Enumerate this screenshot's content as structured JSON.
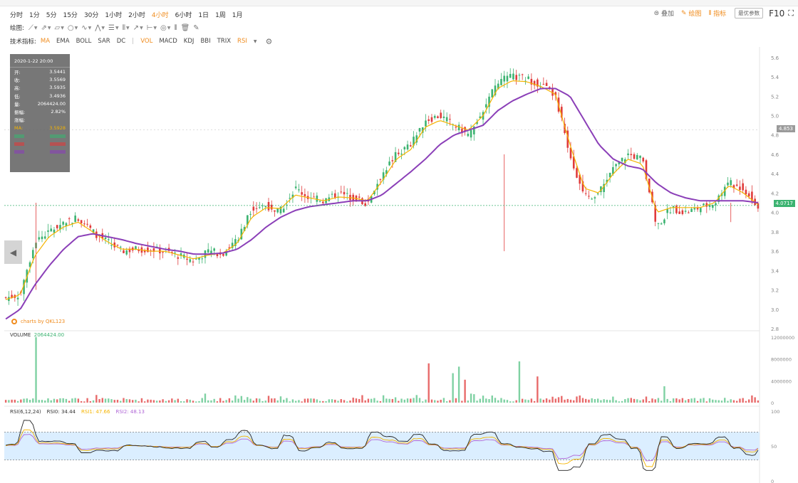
{
  "toolbar": {
    "timeframes": [
      "分时",
      "1分",
      "5分",
      "15分",
      "30分",
      "1小时",
      "2小时",
      "4小时",
      "6小时",
      "1日",
      "1周",
      "1月"
    ],
    "active_timeframe": "4小时",
    "draw_label": "绘图:",
    "indicator_label": "技术指标:",
    "indicators": [
      "MA",
      "EMA",
      "BOLL",
      "SAR",
      "DC",
      "|",
      "VOL",
      "MACD",
      "KDJ",
      "BBI",
      "TRIX",
      "RSI"
    ],
    "active_indicators": [
      "MA",
      "VOL",
      "RSI"
    ],
    "right": {
      "overlay": "叠加",
      "draw": "绘图",
      "indicator": "指标",
      "settings": "最优参数",
      "f10": "F10"
    }
  },
  "tooltip": {
    "date": "2020-1-22 20:00",
    "rows": [
      {
        "k": "开:",
        "v": "3.5441"
      },
      {
        "k": "收:",
        "v": "3.5569"
      },
      {
        "k": "高:",
        "v": "3.5935"
      },
      {
        "k": "低:",
        "v": "3.4936"
      },
      {
        "k": "量:",
        "v": "2064424.00"
      },
      {
        "k": "振幅:",
        "v": "2.82%"
      },
      {
        "k": "涨幅:",
        "v": ""
      },
      {
        "k": "MA:",
        "v": "3.5928"
      },
      {
        "k": "",
        "v": ""
      },
      {
        "k": "",
        "v": ""
      },
      {
        "k": "",
        "v": ""
      }
    ]
  },
  "watermark": "charts by QKL123",
  "current_price": "4.0717",
  "crosshair_price": "4.853",
  "volume_label": "VOLUME",
  "volume_value": "2064424.00",
  "rsi_labels": {
    "params": "RSI(6,12,24)",
    "rsi0": "RSI0: 34.44",
    "rsi1": "RSI1: 47.66",
    "rsi2": "RSI2: 48.13"
  },
  "colors": {
    "up": "#3cb371",
    "down": "#e03b3b",
    "ma_fast": "#f5b400",
    "ma_slow": "#8b3fb8",
    "accent": "#f08c1e"
  },
  "chart_data": [
    {
      "type": "candlestick",
      "y_ticks": [
        2.8,
        3.0,
        3.2,
        3.4,
        3.6,
        3.8,
        4.0,
        4.2,
        4.4,
        4.6,
        4.8,
        5.0,
        5.2,
        5.4,
        5.6
      ],
      "ylim": [
        2.8,
        5.65
      ],
      "close_path": [
        3.12,
        3.15,
        3.7,
        3.8,
        3.9,
        3.95,
        3.8,
        3.7,
        3.6,
        3.62,
        3.62,
        3.6,
        3.55,
        3.5,
        3.6,
        3.58,
        3.72,
        4.05,
        4.07,
        4.02,
        4.25,
        4.15,
        4.12,
        4.2,
        4.15,
        4.1,
        4.4,
        4.6,
        4.7,
        4.95,
        5.0,
        4.9,
        4.8,
        5.05,
        5.35,
        5.4,
        5.38,
        5.32,
        5.2,
        4.6,
        4.15,
        4.2,
        4.45,
        4.6,
        4.55,
        3.85,
        4.05,
        4.0,
        4.05,
        4.1,
        4.3,
        4.25,
        4.05
      ],
      "ma_fast_path": [
        3.1,
        3.15,
        3.55,
        3.75,
        3.85,
        3.9,
        3.8,
        3.7,
        3.62,
        3.62,
        3.6,
        3.6,
        3.56,
        3.52,
        3.56,
        3.58,
        3.68,
        3.95,
        4.05,
        4.04,
        4.18,
        4.15,
        4.12,
        4.16,
        4.15,
        4.12,
        4.32,
        4.55,
        4.65,
        4.88,
        4.95,
        4.9,
        4.85,
        5.0,
        5.28,
        5.36,
        5.35,
        5.3,
        5.22,
        4.7,
        4.25,
        4.2,
        4.4,
        4.55,
        4.5,
        4.0,
        4.05,
        4.05,
        4.05,
        4.1,
        4.28,
        4.2,
        4.08
      ],
      "ma_slow_path": [
        2.9,
        3.0,
        3.25,
        3.45,
        3.62,
        3.75,
        3.78,
        3.75,
        3.72,
        3.68,
        3.65,
        3.62,
        3.6,
        3.57,
        3.57,
        3.58,
        3.62,
        3.72,
        3.85,
        3.95,
        4.02,
        4.06,
        4.08,
        4.1,
        4.12,
        4.12,
        4.18,
        4.3,
        4.42,
        4.55,
        4.7,
        4.8,
        4.85,
        4.9,
        5.05,
        5.15,
        5.22,
        5.28,
        5.28,
        5.2,
        4.95,
        4.7,
        4.55,
        4.48,
        4.45,
        4.3,
        4.2,
        4.15,
        4.12,
        4.12,
        4.12,
        4.12,
        4.1
      ]
    },
    {
      "type": "bar",
      "name": "VOLUME",
      "y_ticks": [
        0,
        4000000,
        8000000,
        12000000
      ],
      "ylim": [
        0,
        12000000
      ]
    },
    {
      "type": "line",
      "name": "RSI",
      "y_ticks": [
        0,
        50,
        100
      ],
      "ylim": [
        0,
        100
      ],
      "band": [
        30,
        70
      ]
    }
  ]
}
